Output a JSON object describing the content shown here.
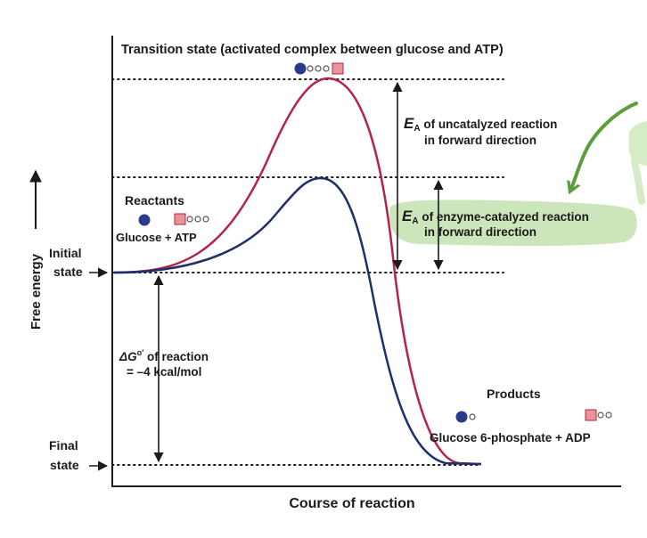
{
  "labels": {
    "transition_state": "Transition state (activated complex between glucose and ATP)",
    "ea_uncat_symbol": "E",
    "ea_uncat_sub": "A",
    "ea_uncat_line1": " of uncatalyzed reaction",
    "ea_uncat_line2": "in forward direction",
    "ea_cat_symbol": "E",
    "ea_cat_sub": "A",
    "ea_cat_line1": " of enzyme-catalyzed reaction",
    "ea_cat_line2": "in forward direction",
    "reactants_title": "Reactants",
    "reactants_name": "Glucose + ATP",
    "initial_state_line1": "Initial",
    "initial_state_line2": "state",
    "final_state_line1": "Final",
    "final_state_line2": "state",
    "dg_line1_prefix": "ΔG",
    "dg_line1_sup": "o′",
    "dg_line1_suffix": " of reaction",
    "dg_line2": "= –4 kcal/mol",
    "products_title": "Products",
    "products_name": "Glucose 6-phosphate + ADP",
    "y_axis": "Free energy",
    "x_axis": "Course of reaction"
  },
  "colors": {
    "uncatalyzed_curve": "#b5234a",
    "catalyzed_curve": "#1f2f6e",
    "highlight": "#c6e2b2",
    "annotation_arrow": "#5a9e3c",
    "glucose_ball": "#2a3a8c",
    "phosphate_square": "#e8949a"
  },
  "icons": [
    "glucose-molecule-icon",
    "atp-molecule-icon",
    "activated-complex-icon",
    "glucose-6-phosphate-icon",
    "adp-molecule-icon"
  ]
}
